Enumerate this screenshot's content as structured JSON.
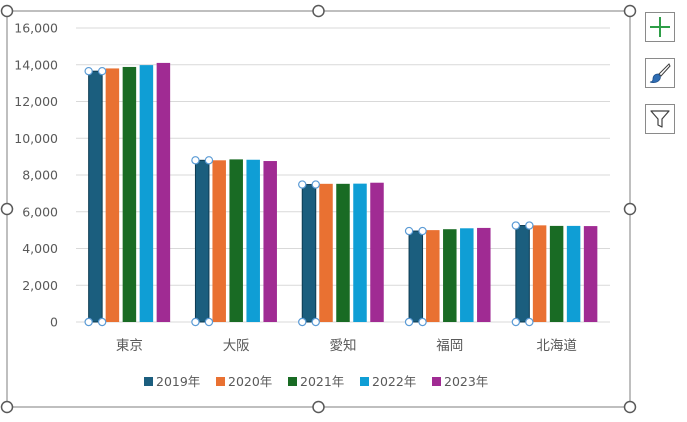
{
  "chart_data": {
    "type": "bar",
    "categories": [
      "東京",
      "大阪",
      "愛知",
      "福岡",
      "北海道"
    ],
    "series": [
      {
        "name": "2019年",
        "color": "#1b5e7e",
        "values": [
          13650,
          8800,
          7480,
          4950,
          5250
        ]
      },
      {
        "name": "2020年",
        "color": "#e97132",
        "values": [
          13800,
          8800,
          7520,
          5000,
          5260
        ]
      },
      {
        "name": "2021年",
        "color": "#196b24",
        "values": [
          13880,
          8850,
          7520,
          5050,
          5230
        ]
      },
      {
        "name": "2022年",
        "color": "#0f9ed5",
        "values": [
          13980,
          8830,
          7530,
          5100,
          5230
        ]
      },
      {
        "name": "2023年",
        "color": "#a02b93",
        "values": [
          14100,
          8760,
          7580,
          5120,
          5220
        ]
      }
    ],
    "ylim": [
      0,
      16000
    ],
    "yticks": [
      "0",
      "2,000",
      "4,000",
      "6,000",
      "8,000",
      "10,000",
      "12,000",
      "14,000",
      "16,000"
    ],
    "grid": true,
    "legend_position": "bottom",
    "selected_series": "2019年"
  },
  "side_buttons": [
    {
      "name": "chart-elements-button",
      "icon": "plus-icon"
    },
    {
      "name": "chart-styles-button",
      "icon": "brush-icon"
    },
    {
      "name": "chart-filters-button",
      "icon": "filter-icon"
    }
  ],
  "colors": {
    "gridline": "#d9d9d9",
    "axis_text": "#595959",
    "frame": "#7f7f7f",
    "handle_fill": "#ffffff",
    "handle_stroke": "#595959",
    "selection_handle": "#5b9bd5",
    "button_icon_green": "#2e9e48",
    "button_icon_blue": "#2f6db3"
  }
}
